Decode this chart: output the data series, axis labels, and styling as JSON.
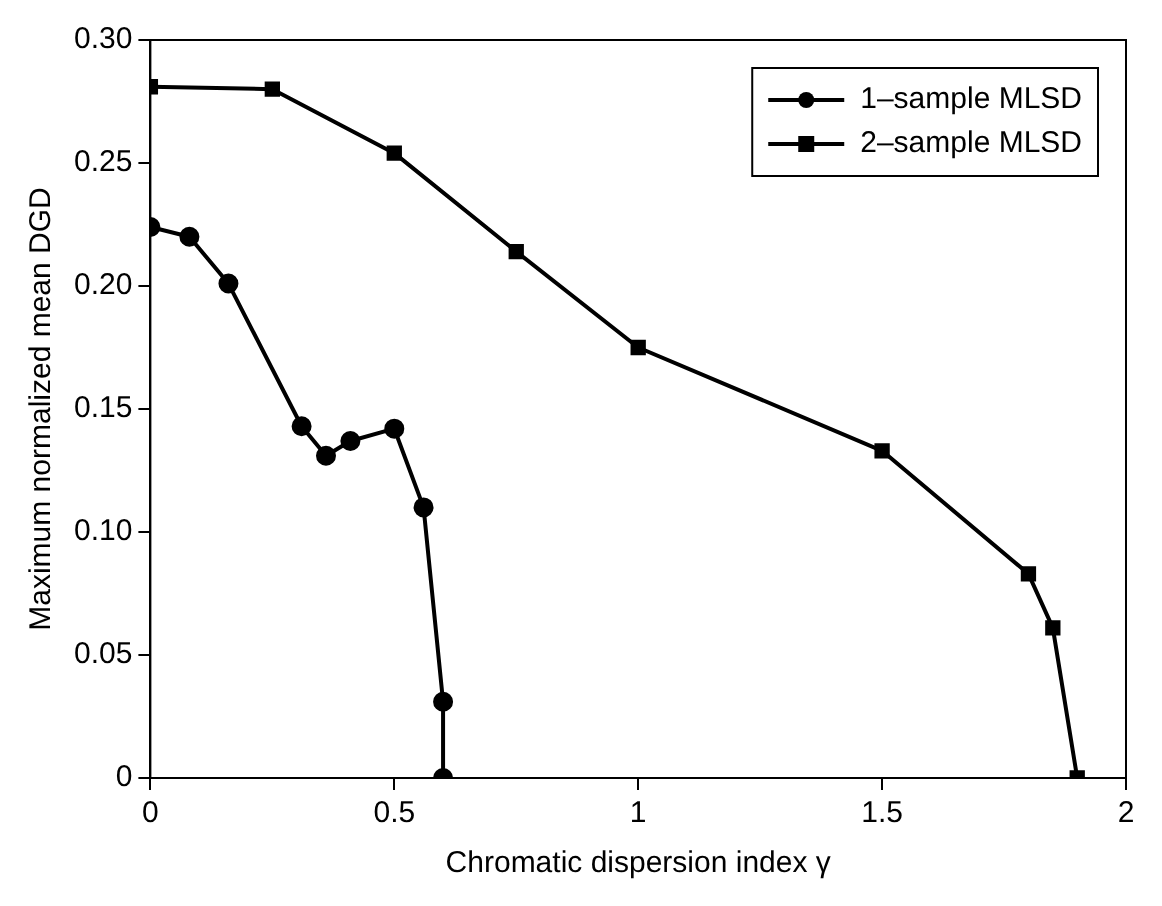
{
  "chart_data": {
    "type": "line",
    "xlabel": "Chromatic dispersion index γ",
    "ylabel": "Maximum normalized mean DGD",
    "xlim": [
      0,
      2
    ],
    "xticks": [
      0,
      0.5,
      1,
      1.5,
      2
    ],
    "ylim": [
      0,
      0.3
    ],
    "yticks": [
      0,
      0.05,
      {
        "value": 0.1,
        "label": "0.10"
      },
      0.15,
      {
        "value": 0.2,
        "label": "0.20"
      },
      0.25,
      {
        "value": 0.3,
        "label": "0.30"
      }
    ],
    "grid": false,
    "legend": "top right",
    "line_style": "solid",
    "series": [
      {
        "name": "1–sample MLSD",
        "color": "#000000",
        "marker": "circle",
        "x": [
          0,
          0.08,
          0.16,
          0.31,
          0.36,
          0.41,
          0.5,
          0.56,
          0.6,
          0.6
        ],
        "values": [
          0.224,
          0.22,
          0.201,
          0.143,
          0.131,
          0.137,
          0.142,
          0.11,
          0.031,
          0
        ]
      },
      {
        "name": "2–sample MLSD",
        "color": "#000000",
        "marker": "square",
        "x": [
          0,
          0.25,
          0.5,
          0.75,
          1,
          1.5,
          1.8,
          1.85,
          1.9
        ],
        "values": [
          0.281,
          0.28,
          0.254,
          0.214,
          0.175,
          0.133,
          0.083,
          0.061,
          0
        ]
      }
    ]
  }
}
